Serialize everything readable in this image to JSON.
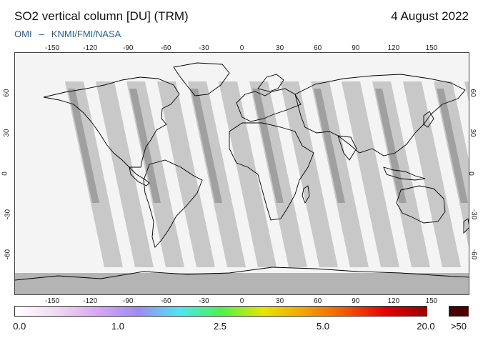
{
  "header": {
    "title": "SO2 vertical column [DU] (TRM)",
    "date": "4 August 2022",
    "source_left": "OMI",
    "source_sep": "–",
    "source_right": "KNMI/FMI/NASA"
  },
  "map": {
    "lon_ticks": [
      "-150",
      "-120",
      "-90",
      "-60",
      "-30",
      "0",
      "30",
      "60",
      "90",
      "120",
      "150"
    ],
    "lat_ticks": [
      "60",
      "30",
      "0",
      "-30",
      "-60"
    ],
    "colors": {
      "background": "#f4f4f4",
      "orbit_swath": "#c8c8c8",
      "orbit_swath_dark": "#a0a0a0",
      "antarctic_band": "#b4b4b4",
      "coastline": "#000000"
    }
  },
  "colorbar": {
    "labels": [
      "0.0",
      "1.0",
      "2.5",
      "5.0",
      "20.0",
      ">50"
    ],
    "gradient_colors": [
      "#ffffff",
      "#f2d9f2",
      "#d9a6f2",
      "#9d8cf2",
      "#4de6f2",
      "#4df24d",
      "#e6e600",
      "#f2a600",
      "#f25a00",
      "#e60000",
      "#990000"
    ],
    "max_color": "#4d0000"
  }
}
